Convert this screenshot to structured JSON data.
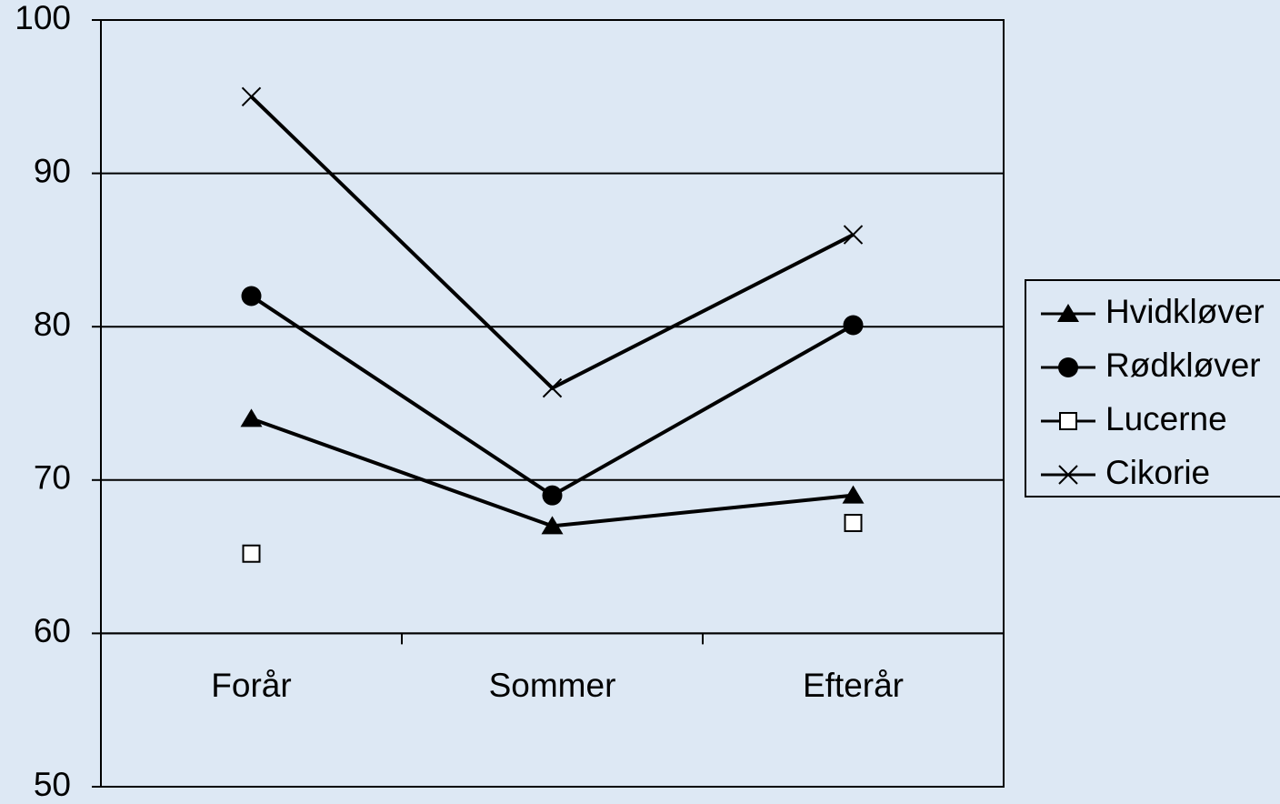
{
  "chart_data": {
    "type": "line",
    "categories": [
      "Forår",
      "Sommer",
      "Efterår"
    ],
    "series": [
      {
        "name": "Hvidkløver",
        "color": "#000000",
        "marker": "triangle",
        "values": [
          74,
          67,
          69
        ]
      },
      {
        "name": "Rødkløver",
        "color": "#000000",
        "marker": "circle",
        "values": [
          82,
          69,
          80.1
        ]
      },
      {
        "name": "Lucerne",
        "color": "#000000",
        "marker": "square",
        "values": [
          65.2,
          null,
          67.2
        ]
      },
      {
        "name": "Cikorie",
        "color": "#000000",
        "marker": "x",
        "values": [
          95,
          76,
          86
        ]
      }
    ],
    "ylim": [
      50,
      100
    ],
    "yticks": [
      50,
      60,
      70,
      80,
      90,
      100
    ],
    "grid": true,
    "x_axis_crosses": 60,
    "legend": "right"
  }
}
